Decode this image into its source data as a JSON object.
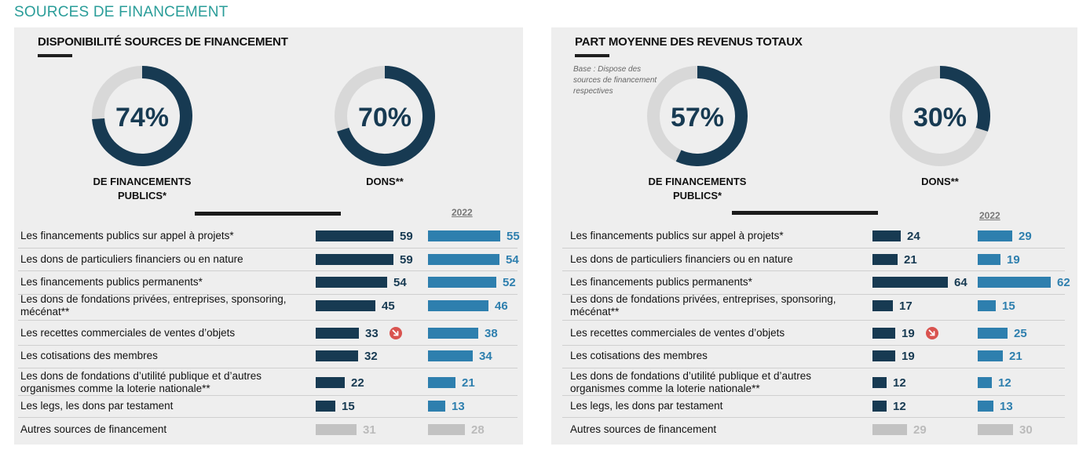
{
  "page_title": "SOURCES DE FINANCEMENT",
  "colors": {
    "dark": "#173a52",
    "blue": "#2e7fae",
    "grey": "#c2c2c2",
    "grey_text": "#bbbbbb",
    "donut_track": "#d8d8d8",
    "accent": "#2a9d99",
    "trend_red": "#d9534f"
  },
  "chart_data": [
    {
      "id": "left",
      "type": "bar",
      "title": "DISPONIBILITÉ SOURCES DE FINANCEMENT",
      "donuts": [
        {
          "value": 74,
          "label": "74%",
          "caption_lines": [
            "DE FINANCEMENTS",
            "PUBLICS*"
          ]
        },
        {
          "value": 70,
          "label": "70%",
          "caption_lines": [
            "DONS**"
          ]
        }
      ],
      "series_label": "2022",
      "categories": [
        "Les financements publics sur appel à projets*",
        "Les dons de particuliers financiers ou en nature",
        "Les financements publics permanents*",
        "Les dons de fondations privées, entreprises, sponsoring, mécénat**",
        "Les recettes commerciales de ventes d’objets",
        "Les cotisations des membres",
        "Les dons de fondations d’utilité publique et d’autres organismes comme la loterie nationale**",
        "Les legs, les dons par testament",
        "Autres sources de financement"
      ],
      "series": [
        {
          "name": "current",
          "values": [
            59,
            59,
            54,
            45,
            33,
            32,
            22,
            15,
            31
          ]
        },
        {
          "name": "2022",
          "values": [
            55,
            54,
            52,
            46,
            38,
            34,
            21,
            13,
            28
          ]
        }
      ],
      "trend_down_index": 4,
      "muted_index": 8,
      "xlim": [
        0,
        64
      ]
    },
    {
      "id": "right",
      "type": "bar",
      "title": "PART MOYENNE DES REVENUS TOTAUX",
      "base_note": "Base : Dispose des sources de financement respectives",
      "donuts": [
        {
          "value": 57,
          "label": "57%",
          "caption_lines": [
            "DE FINANCEMENTS",
            "PUBLICS*"
          ]
        },
        {
          "value": 30,
          "label": "30%",
          "caption_lines": [
            "DONS**"
          ]
        }
      ],
      "series_label": "2022",
      "categories": [
        "Les financements publics sur appel à projets*",
        "Les dons de particuliers financiers ou en nature",
        "Les financements publics permanents*",
        "Les dons de fondations privées, entreprises, sponsoring, mécénat**",
        "Les recettes commerciales de ventes d’objets",
        "Les cotisations des membres",
        "Les dons de fondations d’utilité publique et d’autres organismes comme la loterie nationale**",
        "Les legs, les dons par testament",
        "Autres sources de financement"
      ],
      "series": [
        {
          "name": "current",
          "values": [
            24,
            21,
            64,
            17,
            19,
            19,
            12,
            12,
            29
          ]
        },
        {
          "name": "2022",
          "values": [
            29,
            19,
            62,
            15,
            25,
            21,
            12,
            13,
            30
          ]
        }
      ],
      "trend_down_index": 4,
      "muted_index": 8,
      "xlim": [
        0,
        64
      ]
    }
  ]
}
